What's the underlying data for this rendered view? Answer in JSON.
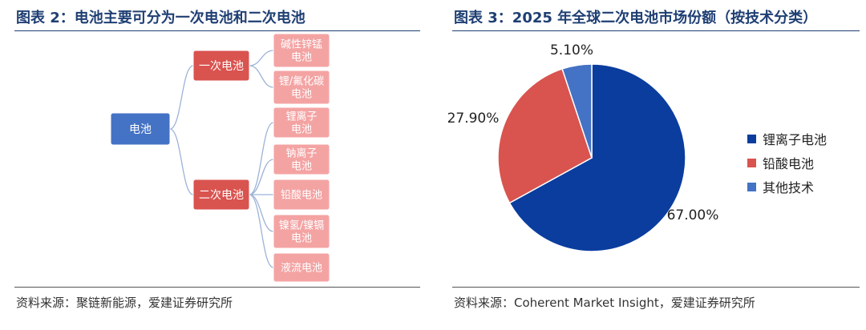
{
  "left": {
    "title": "图表 2：电池主要可分为一次电池和二次电池",
    "source": "资料来源：聚链新能源，爱建证券研究所",
    "tree": {
      "root": "电池",
      "primary": {
        "label": "一次电池",
        "children": [
          "碱性锌锰电池",
          "锂/氟化碳电池"
        ]
      },
      "secondary": {
        "label": "二次电池",
        "children": [
          "锂离子电池",
          "钠离子电池",
          "铅酸电池",
          "镍氢/镍镉电池",
          "液流电池"
        ]
      }
    },
    "colors": {
      "root": "#4472c4",
      "level1": "#d9534f",
      "level2": "#f4a3a3",
      "connector": "#9db3d8"
    }
  },
  "right": {
    "title": "图表 3：2025 年全球二次电池市场份额（按技术分类）",
    "source": "资料来源：Coherent Market Insight，爱建证券研究所"
  },
  "chart_data": {
    "type": "pie",
    "title": "2025 年全球二次电池市场份额（按技术分类）",
    "categories": [
      "锂离子电池",
      "铅酸电池",
      "其他技术"
    ],
    "values": [
      67.0,
      27.9,
      5.1
    ],
    "labels": [
      "67.00%",
      "27.90%",
      "5.10%"
    ],
    "colors": [
      "#0b3d9e",
      "#d9534f",
      "#4472c4"
    ],
    "legend": "right"
  }
}
